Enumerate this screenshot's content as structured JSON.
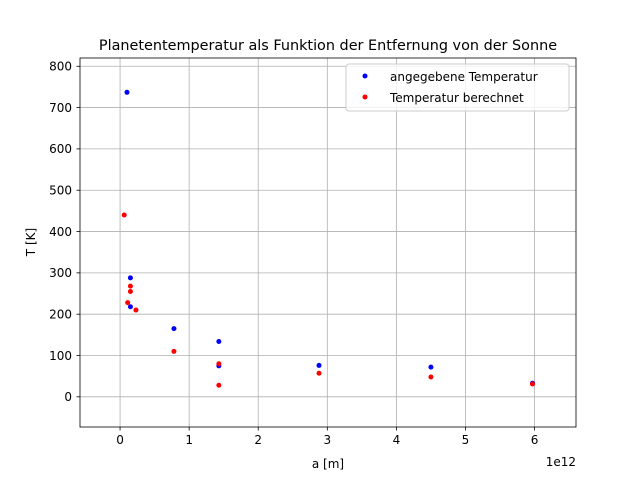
{
  "chart_data": {
    "type": "scatter",
    "title": "Planetentemperatur als Funktion der Entfernung von der Sonne",
    "xlabel": "a [m]",
    "ylabel": "T [K]",
    "x_offset_label": "1e12",
    "x_scale": 1000000000000,
    "xlim": [
      -0.58,
      6.6
    ],
    "ylim": [
      -73,
      820
    ],
    "xticks": [
      0,
      1,
      2,
      3,
      4,
      5,
      6
    ],
    "yticks": [
      0,
      100,
      200,
      300,
      400,
      500,
      600,
      700,
      800
    ],
    "grid": true,
    "legend_position": "top-right",
    "series": [
      {
        "name": "angegebene Temperatur",
        "color": "#0000ff",
        "points": [
          {
            "x": 0.1,
            "y": 737
          },
          {
            "x": 0.15,
            "y": 288
          },
          {
            "x": 0.15,
            "y": 218
          },
          {
            "x": 0.78,
            "y": 165
          },
          {
            "x": 1.43,
            "y": 134
          },
          {
            "x": 1.43,
            "y": 75
          },
          {
            "x": 2.88,
            "y": 76
          },
          {
            "x": 4.5,
            "y": 72
          },
          {
            "x": 5.97,
            "y": 33
          }
        ]
      },
      {
        "name": "Temperatur berechnet",
        "color": "#ff0000",
        "points": [
          {
            "x": 0.06,
            "y": 440
          },
          {
            "x": 0.11,
            "y": 228
          },
          {
            "x": 0.15,
            "y": 268
          },
          {
            "x": 0.15,
            "y": 255
          },
          {
            "x": 0.23,
            "y": 210
          },
          {
            "x": 0.78,
            "y": 110
          },
          {
            "x": 1.43,
            "y": 80
          },
          {
            "x": 1.43,
            "y": 28
          },
          {
            "x": 2.88,
            "y": 57
          },
          {
            "x": 4.5,
            "y": 48
          },
          {
            "x": 5.97,
            "y": 31
          }
        ]
      }
    ]
  }
}
